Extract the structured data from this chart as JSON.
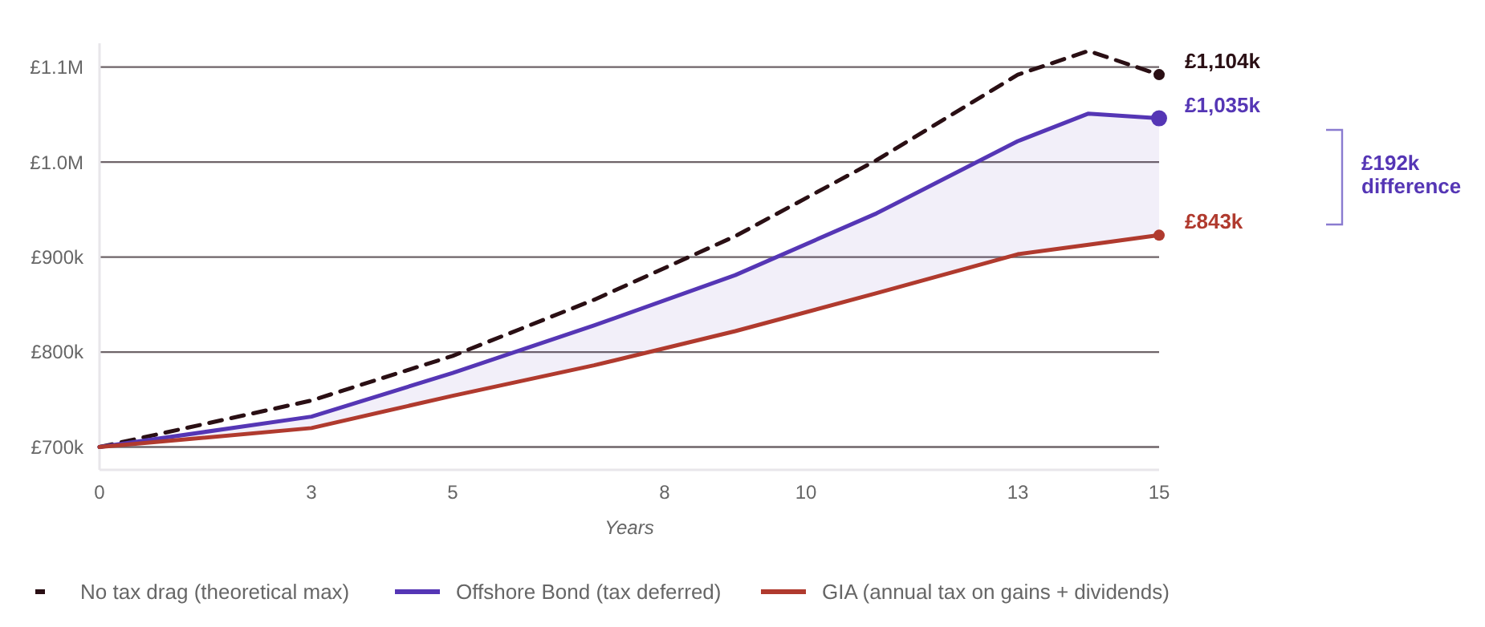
{
  "chart_data": {
    "type": "line",
    "xlabel": "Years",
    "x": [
      0,
      3,
      5,
      7,
      9,
      11,
      13,
      14,
      15
    ],
    "xlim": [
      0,
      15
    ],
    "xticks": [
      0,
      3,
      5,
      8,
      10,
      13,
      15
    ],
    "ylim": [
      676000,
      1125000
    ],
    "yticks": [
      {
        "value": 700000,
        "label": "£700k"
      },
      {
        "value": 800000,
        "label": "£800k"
      },
      {
        "value": 900000,
        "label": "£900k"
      },
      {
        "value": 1000000,
        "label": "£1.0M"
      },
      {
        "value": 1100000,
        "label": "£1.1M"
      }
    ],
    "grid": "y",
    "legend": "bottom",
    "series": [
      {
        "name": "No tax drag (theoretical max)",
        "color": "#2a0f14",
        "line_style": "dashed",
        "values": [
          700000,
          749000,
          796000,
          855000,
          922000,
          1002000,
          1092000,
          1117000,
          1092000
        ]
      },
      {
        "name": "Offshore Bond (tax deferred)",
        "color": "#5536b5",
        "line_style": "solid",
        "values": [
          700000,
          732000,
          778000,
          828000,
          881000,
          946000,
          1022000,
          1051000,
          1046000
        ],
        "lower": [
          700000,
          720000,
          754000,
          786000,
          822000,
          862000,
          903000,
          913000,
          923000
        ],
        "upper": [
          700000,
          732000,
          778000,
          828000,
          881000,
          946000,
          1022000,
          1051000,
          1046000
        ]
      },
      {
        "name": "GIA (annual tax on gains + dividends)",
        "color": "#b03a2e",
        "line_style": "solid",
        "values": [
          700000,
          720000,
          754000,
          786000,
          822000,
          862000,
          903000,
          913000,
          923000
        ]
      }
    ],
    "annotations": [
      "£1,104k",
      "£1,035k",
      "£843k",
      "£192k difference"
    ]
  }
}
